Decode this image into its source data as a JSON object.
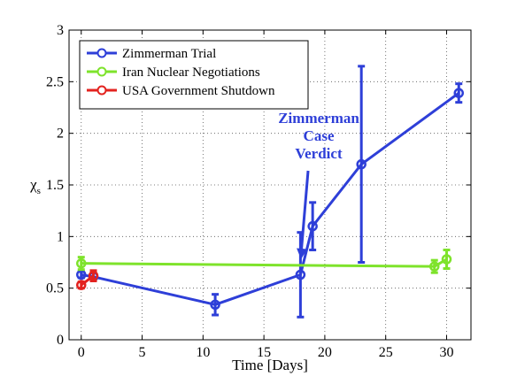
{
  "chart_data": {
    "type": "line",
    "title": "",
    "xlabel": "Time [Days]",
    "ylabel": "χ",
    "ylabel_subscript": "s",
    "xlim": [
      -1,
      32
    ],
    "ylim": [
      0,
      3
    ],
    "xticks": [
      0,
      5,
      10,
      15,
      20,
      25,
      30
    ],
    "yticks": [
      0,
      0.5,
      1,
      1.5,
      2,
      2.5,
      3
    ],
    "ytick_labels": [
      "0",
      "0.5",
      "1",
      "1.5",
      "2",
      "2.5",
      "3"
    ],
    "grid": true,
    "legend_position": "top-left",
    "series": [
      {
        "name": "Zimmerman Trial",
        "color": "#2e3fd8",
        "x": [
          0,
          1,
          11,
          18,
          19,
          23,
          31
        ],
        "y": [
          0.63,
          0.61,
          0.34,
          0.63,
          1.1,
          1.7,
          2.39
        ],
        "err": [
          0.03,
          0.04,
          0.1,
          0.41,
          0.23,
          0.95,
          0.09
        ]
      },
      {
        "name": "Iran Nuclear Negotiations",
        "color": "#7ee32b",
        "x": [
          0,
          29,
          30
        ],
        "y": [
          0.74,
          0.71,
          0.78
        ],
        "err": [
          0.06,
          0.06,
          0.09
        ]
      },
      {
        "name": "USA Government Shutdown",
        "color": "#e3231f",
        "x": [
          0,
          1
        ],
        "y": [
          0.53,
          0.62
        ],
        "err": [
          0.03,
          0.05
        ]
      }
    ],
    "annotations": [
      {
        "lines": [
          "Zimmerman",
          "Case",
          "Verdict"
        ],
        "color": "#2e3fd8",
        "text_x": 19.5,
        "text_y": 2.1,
        "arrow_to_x": 18.05,
        "arrow_to_y": 0.78
      }
    ]
  }
}
